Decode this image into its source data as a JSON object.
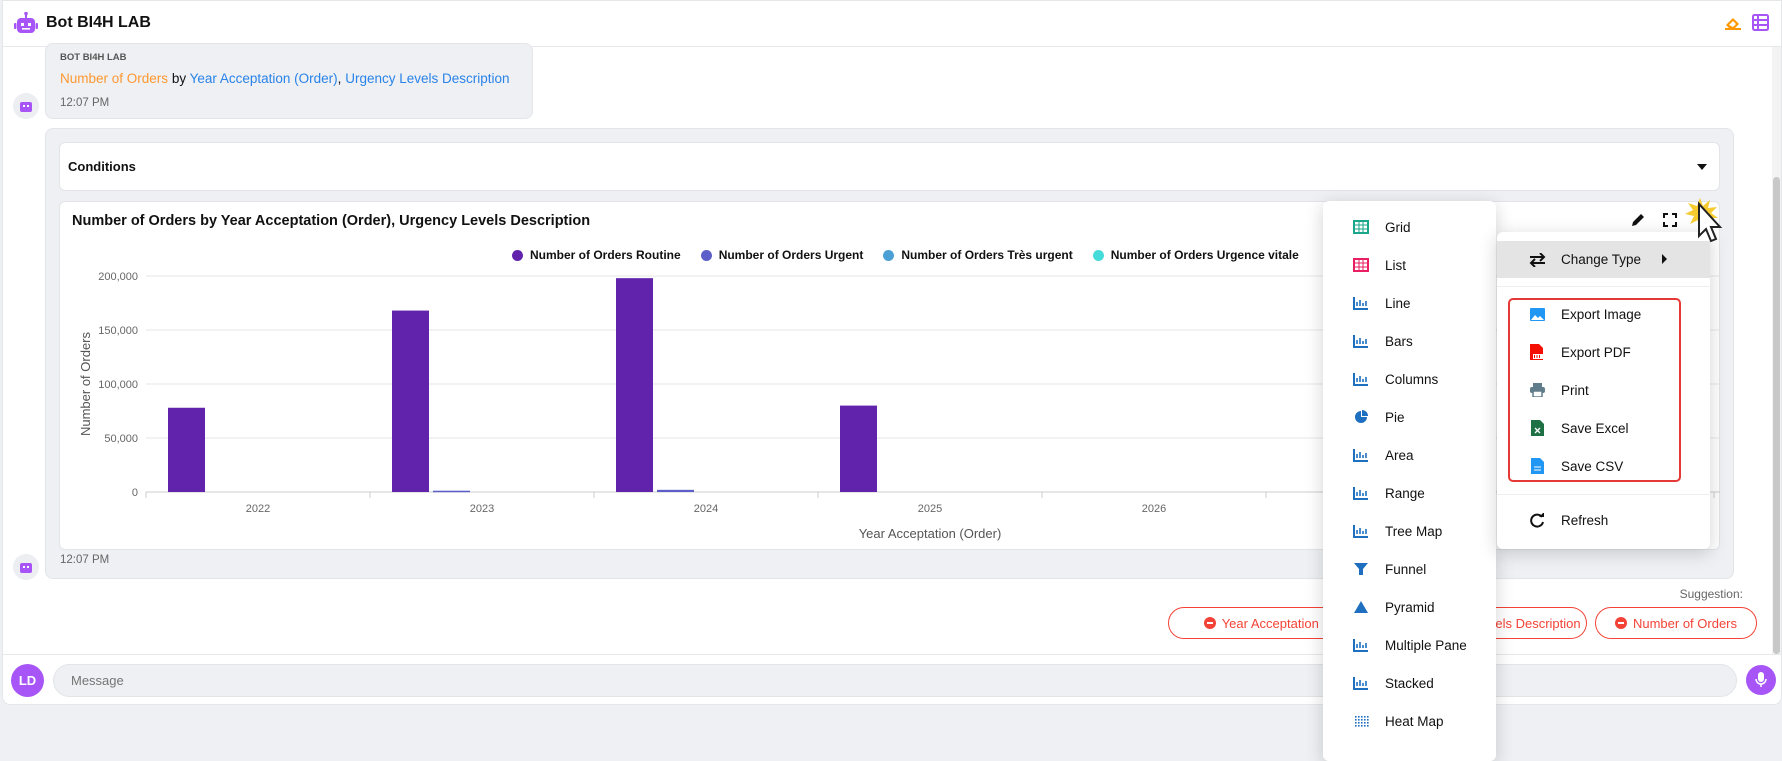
{
  "header": {
    "title": "Bot BI4H LAB",
    "icons": [
      "robot-icon",
      "eraser-icon",
      "list-icon"
    ],
    "accent": "#a855f7"
  },
  "message": {
    "sender": "BOT BI4H LAB",
    "measure": "Number of Orders",
    "by": "by",
    "dim1": "Year Acceptation (Order)",
    "sep": ",",
    "dim2": "Urgency Levels Description",
    "time": "12:07 PM"
  },
  "conditions": {
    "label": "Conditions"
  },
  "chart_card": {
    "time": "12:07 PM"
  },
  "chart_data": {
    "type": "bar",
    "title": "Number of Orders by Year Acceptation (Order), Urgency Levels Description",
    "xlabel": "Year Acceptation (Order)",
    "ylabel": "Number of Orders",
    "ylim": [
      0,
      200000
    ],
    "yticks": [
      "0",
      "50,000",
      "100,000",
      "150,000",
      "200,000"
    ],
    "ytick_values": [
      0,
      50000,
      100000,
      150000,
      200000
    ],
    "categories": [
      "2022",
      "2023",
      "2024",
      "2025",
      "2026"
    ],
    "legend_position": "top-right",
    "grid": true,
    "series": [
      {
        "name": "Number of Orders Routine",
        "color": "#6223ac",
        "values": [
          78000,
          168000,
          198000,
          80000,
          0
        ]
      },
      {
        "name": "Number of Orders Urgent",
        "color": "#5b5fc7",
        "values": [
          0,
          1200,
          2000,
          0,
          0
        ]
      },
      {
        "name": "Number of Orders Très urgent",
        "color": "#4a9fd4",
        "values": [
          0,
          0,
          0,
          0,
          0
        ]
      },
      {
        "name": "Number of Orders Urgence vitale",
        "color": "#45dbd9",
        "values": [
          0,
          0,
          0,
          0,
          0
        ]
      }
    ]
  },
  "context_menu": {
    "change_type": "Change Type",
    "export_image": "Export Image",
    "export_pdf": "Export PDF",
    "print": "Print",
    "save_excel": "Save Excel",
    "save_csv": "Save CSV",
    "refresh": "Refresh"
  },
  "type_menu": [
    "Grid",
    "List",
    "Line",
    "Bars",
    "Columns",
    "Pie",
    "Area",
    "Range",
    "Tree Map",
    "Funnel",
    "Pyramid",
    "Multiple Pane",
    "Stacked",
    "Heat Map"
  ],
  "suggestion": {
    "label": "Suggestion:",
    "chips": [
      "Year Acceptation (Order)",
      "Urgency Levels Description",
      "Number of Orders"
    ]
  },
  "input": {
    "avatar": "LD",
    "placeholder": "Message"
  }
}
